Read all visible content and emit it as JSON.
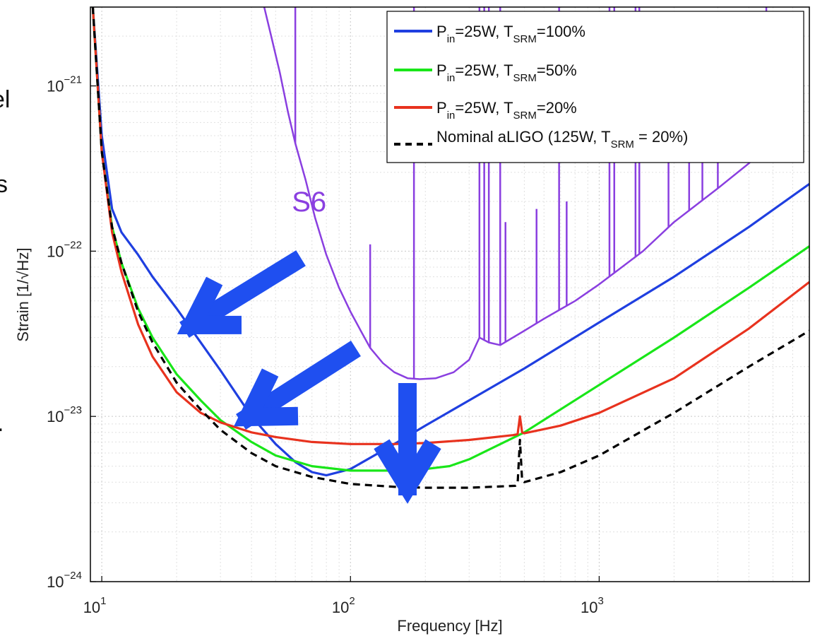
{
  "colors": {
    "pin25_tsrm100": "#1f3fe0",
    "pin25_tsrm50": "#19e619",
    "pin25_tsrm20": "#e8321e",
    "nominal": "#000000",
    "s6": "#8a3fe0",
    "arrows": "#1f4ff0"
  },
  "cut_text": [
    "el",
    "s",
    "."
  ],
  "chart_data": {
    "type": "line",
    "xlabel": "Frequency [Hz]",
    "ylabel": "Strain [1/√Hz]",
    "xscale": "log",
    "yscale": "log",
    "xlim": [
      9.0,
      7000
    ],
    "ylim": [
      1e-24,
      3e-21
    ],
    "x_ticks": [
      10,
      100,
      1000
    ],
    "x_tick_labels": [
      {
        "base": "10",
        "exp": "1"
      },
      {
        "base": "10",
        "exp": "2"
      },
      {
        "base": "10",
        "exp": "3"
      }
    ],
    "y_ticks": [
      1e-24,
      1e-23,
      1e-22,
      1e-21
    ],
    "y_tick_labels": [
      {
        "base": "10",
        "exp": "−24"
      },
      {
        "base": "10",
        "exp": "−23"
      },
      {
        "base": "10",
        "exp": "−22"
      },
      {
        "base": "10",
        "exp": "−21"
      }
    ],
    "grid": true,
    "legend_position": "top-right",
    "annotations": [
      {
        "text": "S6",
        "x": 86,
        "y": 2e-22,
        "color": "#8a3fe0"
      }
    ],
    "series": [
      {
        "key": "pin25_tsrm100",
        "legend": {
          "p_sub": "in",
          "t_sub": "SRM",
          "text_a": "P",
          "text_b": "=25W, T",
          "text_c": "=100%"
        },
        "style": "solid",
        "x": [
          9.2,
          10,
          11,
          12,
          14,
          16,
          20,
          25,
          30,
          40,
          50,
          60,
          70,
          80,
          100,
          150,
          200,
          300,
          500,
          1000,
          2000,
          4000,
          7000
        ],
        "y": [
          3e-21,
          5e-22,
          1.8e-22,
          1.3e-22,
          9.5e-23,
          7e-23,
          4.5e-23,
          2.8e-23,
          1.9e-23,
          1e-23,
          6.8e-24,
          5.3e-24,
          4.6e-24,
          4.4e-24,
          4.8e-24,
          6.8e-24,
          8.8e-24,
          1.25e-23,
          1.95e-23,
          3.7e-23,
          7e-23,
          1.4e-22,
          2.55e-22
        ]
      },
      {
        "key": "pin25_tsrm50",
        "legend": {
          "p_sub": "in",
          "t_sub": "SRM",
          "text_a": "P",
          "text_b": "=25W, T",
          "text_c": "=50%"
        },
        "style": "solid",
        "x": [
          9.2,
          10,
          11,
          12,
          14,
          16,
          20,
          25,
          30,
          40,
          50,
          70,
          100,
          150,
          200,
          250,
          300,
          500,
          1000,
          2000,
          4000,
          7000
        ],
        "y": [
          3e-21,
          4e-22,
          1.4e-22,
          8.5e-23,
          4.5e-23,
          3e-23,
          1.8e-23,
          1.25e-23,
          9.5e-24,
          7e-24,
          5.8e-24,
          5e-24,
          4.7e-24,
          4.7e-24,
          4.8e-24,
          5e-24,
          5.5e-24,
          8e-24,
          1.55e-23,
          3e-23,
          6e-23,
          1.07e-22
        ]
      },
      {
        "key": "pin25_tsrm20",
        "legend": {
          "p_sub": "in",
          "t_sub": "SRM",
          "text_a": "P",
          "text_b": "=25W, T",
          "text_c": "=20%"
        },
        "style": "solid",
        "x": [
          9.2,
          10,
          11,
          12,
          14,
          16,
          20,
          25,
          30,
          40,
          50,
          70,
          100,
          150,
          200,
          300,
          450,
          470,
          480,
          490,
          500,
          700,
          1000,
          2000,
          4000,
          7000
        ],
        "y": [
          3e-21,
          4e-22,
          1.3e-22,
          7.5e-23,
          3.6e-23,
          2.3e-23,
          1.4e-23,
          1.05e-23,
          9.2e-24,
          8e-24,
          7.5e-24,
          7e-24,
          6.8e-24,
          6.8e-24,
          6.9e-24,
          7.2e-24,
          7.7e-24,
          7.8e-24,
          1e-23,
          8e-24,
          7.9e-24,
          8.8e-24,
          1.05e-23,
          1.7e-23,
          3.4e-23,
          6.5e-23
        ]
      },
      {
        "key": "nominal",
        "legend": {
          "text_a": "Nominal aLIGO (125W, T",
          "t_sub": "SRM",
          "text_c": " = 20%)"
        },
        "style": "dashed",
        "x": [
          9.2,
          10,
          11,
          12,
          14,
          16,
          20,
          25,
          30,
          40,
          50,
          70,
          100,
          150,
          200,
          300,
          460,
          470,
          480,
          490,
          500,
          700,
          1000,
          2000,
          4000,
          7000
        ],
        "y": [
          3e-21,
          4e-22,
          1.4e-22,
          8.5e-23,
          4.3e-23,
          2.8e-23,
          1.6e-23,
          1.1e-23,
          8.3e-24,
          6e-24,
          5e-24,
          4.3e-24,
          3.9e-24,
          3.75e-24,
          3.7e-24,
          3.7e-24,
          3.8e-24,
          3.9e-24,
          7.2e-24,
          4.1e-24,
          4e-24,
          4.6e-24,
          5.8e-24,
          1.05e-23,
          2e-23,
          3.3e-23
        ]
      },
      {
        "key": "s6",
        "legend": null,
        "style": "solid",
        "x": [
          45,
          48,
          52,
          56,
          60,
          66,
          72,
          80,
          90,
          100,
          110,
          120,
          135,
          150,
          170,
          190,
          220,
          260,
          300,
          330,
          360,
          400,
          500,
          600,
          800,
          1000,
          1500,
          2000,
          3000,
          4000,
          5000,
          5500
        ],
        "y": [
          3e-21,
          2e-21,
          1.2e-21,
          7e-22,
          4.5e-22,
          2.7e-22,
          1.6e-22,
          9.5e-23,
          6e-23,
          4.3e-23,
          3.3e-23,
          2.6e-23,
          2.1e-23,
          1.85e-23,
          1.7e-23,
          1.68e-23,
          1.7e-23,
          1.85e-23,
          2.2e-23,
          3e-23,
          2.8e-23,
          2.7e-23,
          3.3e-23,
          3.9e-23,
          5e-23,
          6.3e-23,
          1e-22,
          1.5e-22,
          2.4e-22,
          3.4e-22,
          4.8e-22,
          6.5e-22
        ],
        "spikes": [
          {
            "x": 60,
            "y": 3e-21
          },
          {
            "x": 120,
            "y": 1.1e-22
          },
          {
            "x": 180,
            "y": 3e-21
          },
          {
            "x": 330,
            "y": 3e-21
          },
          {
            "x": 345,
            "y": 3e-21
          },
          {
            "x": 360,
            "y": 3e-21
          },
          {
            "x": 400,
            "y": 3e-21
          },
          {
            "x": 420,
            "y": 1.5e-22
          },
          {
            "x": 560,
            "y": 1.8e-22
          },
          {
            "x": 690,
            "y": 3e-21
          },
          {
            "x": 740,
            "y": 2e-22
          },
          {
            "x": 1100,
            "y": 3e-21
          },
          {
            "x": 1150,
            "y": 3e-21
          },
          {
            "x": 1400,
            "y": 3e-21
          },
          {
            "x": 1450,
            "y": 3e-21
          },
          {
            "x": 1900,
            "y": 5e-22
          },
          {
            "x": 2300,
            "y": 6e-22
          },
          {
            "x": 2600,
            "y": 7e-22
          },
          {
            "x": 3000,
            "y": 6e-22
          },
          {
            "x": 4700,
            "y": 3e-21
          },
          {
            "x": 5900,
            "y": 3e-21
          }
        ]
      }
    ]
  }
}
